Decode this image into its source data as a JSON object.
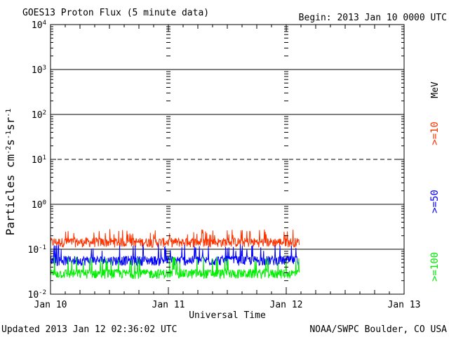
{
  "chart_data": {
    "type": "line",
    "title": "GOES13 Proton Flux (5 minute data)",
    "begin_label": "Begin: 2013 Jan 10 0000 UTC",
    "updated_label": "Updated 2013 Jan 12 02:36:02 UTC",
    "credit_label": "NOAA/SWPC Boulder, CO USA",
    "xlabel": "Universal Time",
    "ylabel": "Particles cm⁻²s⁻¹sr⁻¹",
    "ylabel_parts": {
      "base": "Particles cm",
      "e1": "-2",
      "s": "s",
      "e2": "-1",
      "sr": "sr",
      "e3": "-1"
    },
    "x_unit_label": "MeV",
    "y_scale": "log",
    "ylim": [
      0.01,
      10000
    ],
    "y_ticks": [
      {
        "value": 0.01,
        "base": "10",
        "exp": "-2"
      },
      {
        "value": 0.1,
        "base": "10",
        "exp": "-1"
      },
      {
        "value": 1,
        "base": "10",
        "exp": "0"
      },
      {
        "value": 10,
        "base": "10",
        "exp": "1"
      },
      {
        "value": 100,
        "base": "10",
        "exp": "2"
      },
      {
        "value": 1000,
        "base": "10",
        "exp": "3"
      },
      {
        "value": 10000,
        "base": "10",
        "exp": "4"
      }
    ],
    "x_ticks": [
      "Jan 10",
      "Jan 11",
      "Jan 12",
      "Jan 13"
    ],
    "xlim_days": [
      0,
      3
    ],
    "data_end_day": 2.11,
    "threshold_lines": [
      {
        "value": 10,
        "style": "dashed"
      },
      {
        "value": 0.1,
        "style": "solid"
      }
    ],
    "grid": true,
    "series": [
      {
        "name": ">=10",
        "color": "#ff3300",
        "typical": 0.14,
        "min": 0.09,
        "max": 0.28
      },
      {
        "name": ">=50",
        "color": "#0000ff",
        "typical": 0.055,
        "min": 0.035,
        "max": 0.13
      },
      {
        "name": ">=100",
        "color": "#00ee00",
        "typical": 0.028,
        "min": 0.018,
        "max": 0.07
      }
    ]
  }
}
